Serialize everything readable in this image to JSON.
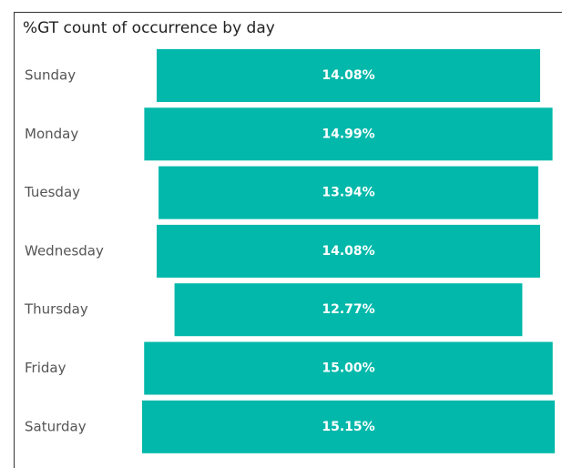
{
  "chart_data": {
    "type": "funnel",
    "title": "%GT count of occurrence by day",
    "categories": [
      "Sunday",
      "Monday",
      "Tuesday",
      "Wednesday",
      "Thursday",
      "Friday",
      "Saturday"
    ],
    "values": [
      14.08,
      14.99,
      13.94,
      14.08,
      12.77,
      15.0,
      15.15
    ],
    "value_labels": [
      "14.08%",
      "14.99%",
      "13.94%",
      "14.08%",
      "12.77%",
      "15.00%",
      "15.15%"
    ],
    "color": "#01b8aa"
  }
}
